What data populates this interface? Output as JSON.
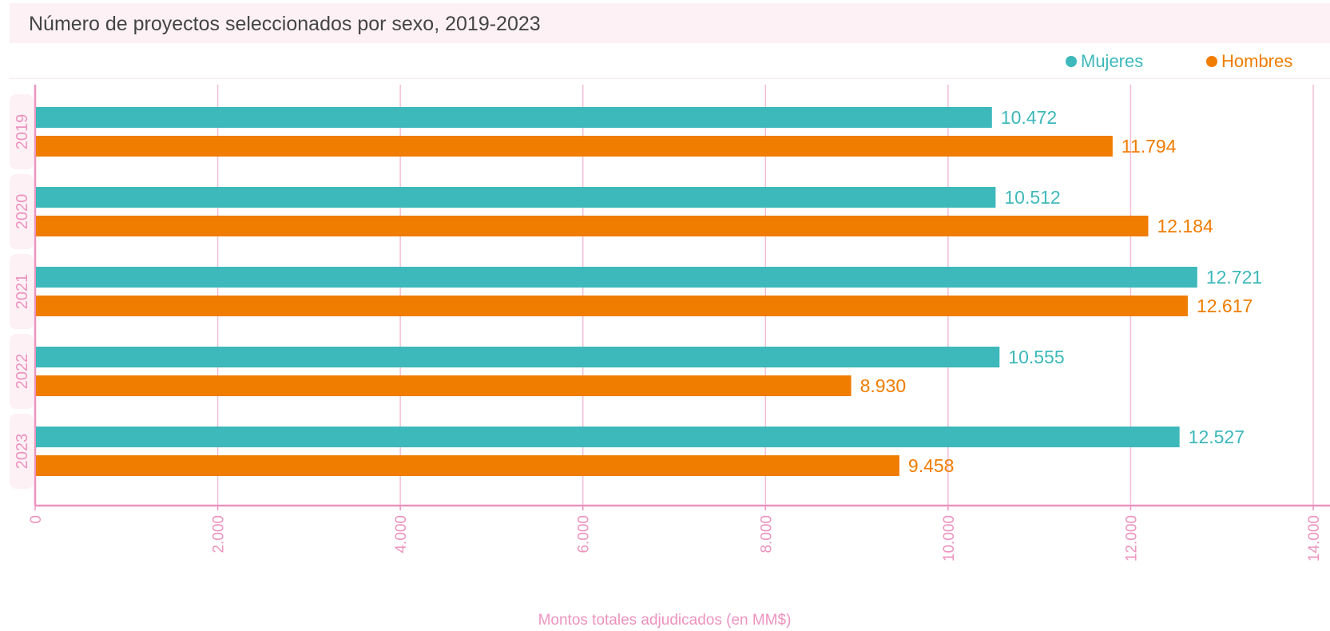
{
  "colors": {
    "mujeres": "#3db8bb",
    "hombres": "#f07c00",
    "axis": "#ec93bf",
    "grid": "#f2bfd8",
    "label_band": "#fdf1f5"
  },
  "chart_data": {
    "type": "bar",
    "orientation": "horizontal",
    "title": "Número de proyectos seleccionados por sexo, 2019-2023",
    "xlabel": "Montos totales adjudicados (en MM$)",
    "ylabel": "",
    "xlim": [
      0,
      14000
    ],
    "grid": true,
    "legend_position": "top-right",
    "categories": [
      "2019",
      "2020",
      "2021",
      "2022",
      "2023"
    ],
    "series": [
      {
        "name": "Mujeres",
        "values": [
          10472,
          10512,
          12721,
          10555,
          12527
        ],
        "value_labels": [
          "10.472",
          "10.512",
          "12.721",
          "10.555",
          "12.527"
        ]
      },
      {
        "name": "Hombres",
        "values": [
          11794,
          12184,
          12617,
          8930,
          9458
        ],
        "value_labels": [
          "11.794",
          "12.184",
          "12.617",
          "8.930",
          "9.458"
        ]
      }
    ],
    "x_ticks": [
      0,
      2000,
      4000,
      6000,
      8000,
      10000,
      12000,
      14000
    ],
    "x_tick_labels": [
      "0",
      "2.000",
      "4.000",
      "6.000",
      "8.000",
      "10.000",
      "12.000",
      "14.000"
    ]
  }
}
